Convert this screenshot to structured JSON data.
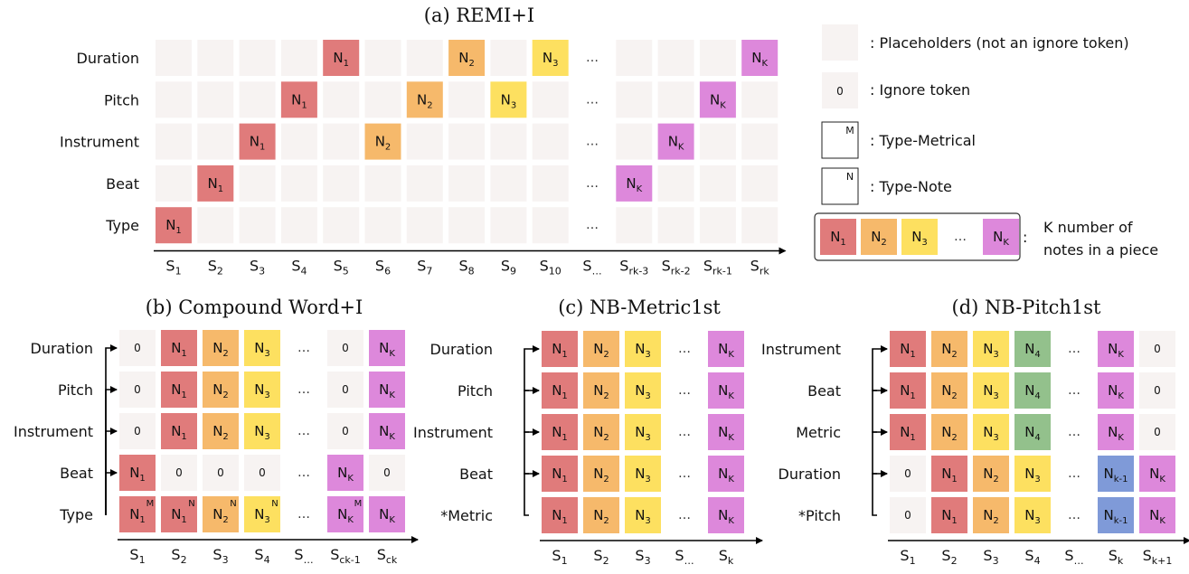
{
  "colors": {
    "placeholder": "#f7f3f2",
    "n1": "#e07b7b",
    "n2": "#f6b96b",
    "n3": "#fde060",
    "n4": "#93c18c",
    "nk": "#dd88db",
    "nk1": "#7f9ad8"
  },
  "panels": {
    "a": {
      "title": "(a) REMI+I",
      "rows": [
        "Duration",
        "Pitch",
        "Instrument",
        "Beat",
        "Type"
      ],
      "xlabels": [
        [
          "S",
          "1"
        ],
        [
          "S",
          "2"
        ],
        [
          "S",
          "3"
        ],
        [
          "S",
          "4"
        ],
        [
          "S",
          "5"
        ],
        [
          "S",
          "6"
        ],
        [
          "S",
          "7"
        ],
        [
          "S",
          "8"
        ],
        [
          "S",
          "9"
        ],
        [
          "S",
          "10"
        ],
        [
          "S",
          "…"
        ],
        [
          "S",
          "rk-3"
        ],
        [
          "S",
          "rk-2"
        ],
        [
          "S",
          "rk-1"
        ],
        [
          "S",
          "rk"
        ]
      ],
      "grid": [
        [
          "p",
          "p",
          "p",
          "p",
          "n1",
          "p",
          "p",
          "n2",
          "p",
          "n3",
          "dots",
          "p",
          "p",
          "p",
          "nk"
        ],
        [
          "p",
          "p",
          "p",
          "n1",
          "p",
          "p",
          "n2",
          "p",
          "n3",
          "p",
          "dots",
          "p",
          "p",
          "nk",
          "p"
        ],
        [
          "p",
          "p",
          "n1",
          "p",
          "p",
          "n2",
          "p",
          "p",
          "p",
          "p",
          "dots",
          "p",
          "nk",
          "p",
          "p"
        ],
        [
          "p",
          "n1",
          "p",
          "p",
          "p",
          "p",
          "p",
          "p",
          "p",
          "p",
          "dots",
          "nk",
          "p",
          "p",
          "p"
        ],
        [
          "n1",
          "p",
          "p",
          "p",
          "p",
          "p",
          "p",
          "p",
          "p",
          "p",
          "dots",
          "p",
          "p",
          "p",
          "p"
        ]
      ]
    },
    "b": {
      "title": "(b) Compound Word+I",
      "rows": [
        "Duration",
        "Pitch",
        "Instrument",
        "Beat",
        "Type"
      ],
      "xlabels": [
        [
          "S",
          "1"
        ],
        [
          "S",
          "2"
        ],
        [
          "S",
          "3"
        ],
        [
          "S",
          "4"
        ],
        [
          "S",
          "…"
        ],
        [
          "S",
          "ck-1"
        ],
        [
          "S",
          "ck"
        ]
      ],
      "grid": [
        [
          "z",
          "n1",
          "n2",
          "n3",
          "dots",
          "z",
          "nk"
        ],
        [
          "z",
          "n1",
          "n2",
          "n3",
          "dots",
          "z",
          "nk"
        ],
        [
          "z",
          "n1",
          "n2",
          "n3",
          "dots",
          "z",
          "nk"
        ],
        [
          "n1",
          "z",
          "z",
          "z",
          "dots",
          "nk",
          "z"
        ],
        [
          "n1:M",
          "n1:N",
          "n2:N",
          "n3:N",
          "dots",
          "nk:M",
          "nk"
        ]
      ]
    },
    "c": {
      "title": "(c) NB-Metric1st",
      "rows": [
        "Duration",
        "Pitch",
        "Instrument",
        "Beat",
        "*Metric"
      ],
      "xlabels": [
        [
          "S",
          "1"
        ],
        [
          "S",
          "2"
        ],
        [
          "S",
          "3"
        ],
        [
          "S",
          "…"
        ],
        [
          "S",
          "k"
        ]
      ],
      "grid": [
        [
          "n1",
          "n2",
          "n3",
          "dots",
          "nk"
        ],
        [
          "n1",
          "n2",
          "n3",
          "dots",
          "nk"
        ],
        [
          "n1",
          "n2",
          "n3",
          "dots",
          "nk"
        ],
        [
          "n1",
          "n2",
          "n3",
          "dots",
          "nk"
        ],
        [
          "n1",
          "n2",
          "n3",
          "dots",
          "nk"
        ]
      ]
    },
    "d": {
      "title": "(d) NB-Pitch1st",
      "rows": [
        "Instrument",
        "Beat",
        "Metric",
        "Duration",
        "*Pitch"
      ],
      "xlabels": [
        [
          "S",
          "1"
        ],
        [
          "S",
          "2"
        ],
        [
          "S",
          "3"
        ],
        [
          "S",
          "4"
        ],
        [
          "S",
          "…"
        ],
        [
          "S",
          "k"
        ],
        [
          "S",
          "k+1"
        ]
      ],
      "grid": [
        [
          "n1",
          "n2",
          "n3",
          "n4",
          "dots",
          "nk",
          "z"
        ],
        [
          "n1",
          "n2",
          "n3",
          "n4",
          "dots",
          "nk",
          "z"
        ],
        [
          "n1",
          "n2",
          "n3",
          "n4",
          "dots",
          "nk",
          "z"
        ],
        [
          "z",
          "n1",
          "n2",
          "n3",
          "dots",
          "nk1",
          "nk"
        ],
        [
          "z",
          "n1",
          "n2",
          "n3",
          "dots",
          "nk1",
          "nk"
        ]
      ]
    }
  },
  "tokens": {
    "n1": [
      "N",
      "1"
    ],
    "n2": [
      "N",
      "2"
    ],
    "n3": [
      "N",
      "3"
    ],
    "n4": [
      "N",
      "4"
    ],
    "nk": [
      "N",
      "K"
    ],
    "nk1": [
      "N",
      "k-1"
    ],
    "zero": "0",
    "dots": "…"
  },
  "legend": {
    "placeholder": ": Placeholders (not an ignore token)",
    "ignore": ": Ignore token",
    "ignore_symbol": "0",
    "metrical": ": Type-Metrical",
    "metrical_symbol": "M",
    "note": ": Type-Note",
    "note_symbol": "N",
    "colon": ":",
    "knotes_line1": "K number of",
    "knotes_line2": "notes in a piece"
  }
}
